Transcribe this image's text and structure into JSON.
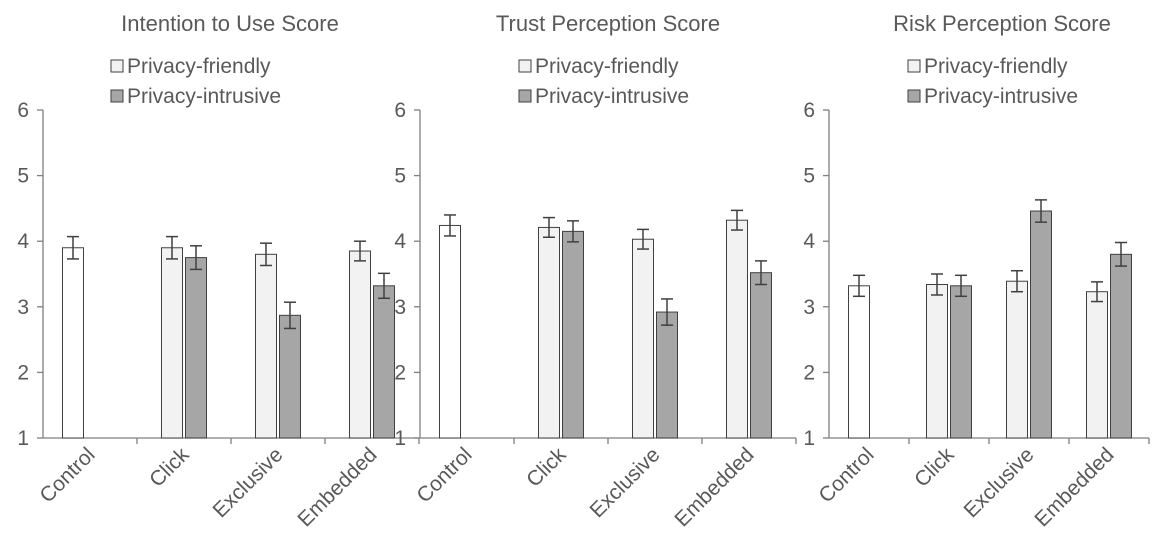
{
  "chart_data": [
    {
      "type": "bar",
      "title": "Intention to Use Score",
      "categories": [
        "Control",
        "Click",
        "Exclusive",
        "Embedded"
      ],
      "ylim": [
        1,
        6
      ],
      "yticks": [
        1,
        2,
        3,
        4,
        5,
        6
      ],
      "legend_position": "top",
      "series": [
        {
          "name": "Privacy-friendly",
          "values": [
            null,
            3.9,
            3.8,
            3.85
          ],
          "errors": [
            null,
            0.17,
            0.17,
            0.15
          ]
        },
        {
          "name": "Privacy-intrusive",
          "values": [
            null,
            3.75,
            2.87,
            3.32
          ],
          "errors": [
            null,
            0.18,
            0.2,
            0.19
          ]
        }
      ],
      "control": {
        "value": 3.9,
        "error": 0.17
      }
    },
    {
      "type": "bar",
      "title": "Trust Perception Score",
      "categories": [
        "Control",
        "Click",
        "Exclusive",
        "Embedded"
      ],
      "ylim": [
        1,
        6
      ],
      "yticks": [
        1,
        2,
        3,
        4,
        5,
        6
      ],
      "legend_position": "top",
      "series": [
        {
          "name": "Privacy-friendly",
          "values": [
            null,
            4.21,
            4.03,
            4.32
          ],
          "errors": [
            null,
            0.15,
            0.15,
            0.15
          ]
        },
        {
          "name": "Privacy-intrusive",
          "values": [
            null,
            4.15,
            2.92,
            3.52
          ],
          "errors": [
            null,
            0.16,
            0.2,
            0.18
          ]
        }
      ],
      "control": {
        "value": 4.24,
        "error": 0.16
      }
    },
    {
      "type": "bar",
      "title": "Risk Perception Score",
      "categories": [
        "Control",
        "Click",
        "Exclusive",
        "Embedded"
      ],
      "ylim": [
        1,
        6
      ],
      "yticks": [
        1,
        2,
        3,
        4,
        5,
        6
      ],
      "legend_position": "top",
      "series": [
        {
          "name": "Privacy-friendly",
          "values": [
            null,
            3.34,
            3.39,
            3.23
          ],
          "errors": [
            null,
            0.16,
            0.16,
            0.15
          ]
        },
        {
          "name": "Privacy-intrusive",
          "values": [
            null,
            3.32,
            4.46,
            3.8
          ],
          "errors": [
            null,
            0.16,
            0.17,
            0.18
          ]
        }
      ],
      "control": {
        "value": 3.32,
        "error": 0.16
      }
    }
  ],
  "colors": {
    "friendly_fill": "#f2f2f2",
    "intrusive_fill": "#a6a6a6",
    "control_fill": "#ffffff",
    "outline": "#404040",
    "axis": "#7f7f7f",
    "text": "#595959"
  }
}
